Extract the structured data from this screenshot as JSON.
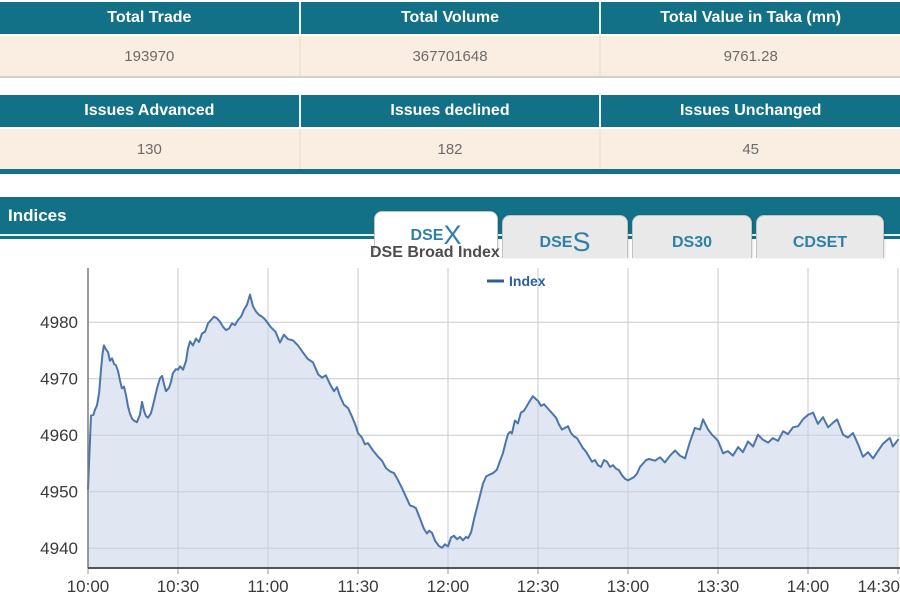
{
  "colors": {
    "teal": "#127186",
    "cream": "#faeee3",
    "value_text": "#6e6a66",
    "tab_text": "#2e80a8",
    "grid": "#c9c9c9",
    "axis": "#555555",
    "axis_y": "#7a7a7a",
    "tick_label": "#3a3a3a",
    "line": "#4a76ad",
    "fill": "rgba(199,211,232,0.55)",
    "legend_text": "#2a5f9e",
    "title_text": "#4d4d4d"
  },
  "tables": [
    {
      "headers": [
        "Total Trade",
        "Total Volume",
        "Total Value in Taka (mn)"
      ],
      "values": [
        "193970",
        "367701648",
        "9761.28"
      ]
    },
    {
      "headers": [
        "Issues Advanced",
        "Issues declined",
        "Issues Unchanged"
      ],
      "values": [
        "130",
        "182",
        "45"
      ]
    }
  ],
  "indices": {
    "title": "Indices"
  },
  "tabs": [
    {
      "text": "DSE",
      "big": "X",
      "active": true
    },
    {
      "text": "DSE",
      "big": "S",
      "active": false
    },
    {
      "text": "DS30",
      "big": "",
      "active": false
    },
    {
      "text": "CDSET",
      "big": "",
      "active": false
    }
  ],
  "chart_data": {
    "type": "area",
    "title": "DSE Broad Index",
    "legend": [
      "Index"
    ],
    "legend_position": "top-center",
    "grid": true,
    "x_ticks": [
      "10:00",
      "10:30",
      "11:00",
      "11:30",
      "12:00",
      "12:30",
      "13:00",
      "13:30",
      "14:00",
      "14:30"
    ],
    "x_tick_minutes": [
      0,
      30,
      60,
      90,
      120,
      150,
      180,
      210,
      240,
      270
    ],
    "x_range_minutes": [
      0,
      270
    ],
    "y_ticks": [
      4940,
      4950,
      4960,
      4970,
      4980
    ],
    "y_range": [
      4936.5,
      4989.6
    ],
    "points": [
      [
        0,
        4950.5
      ],
      [
        0.5,
        4957
      ],
      [
        1,
        4963.5
      ],
      [
        1.8,
        4963.6
      ],
      [
        2.3,
        4964.5
      ],
      [
        3,
        4965.3
      ],
      [
        3.7,
        4967.5
      ],
      [
        4.3,
        4971.4
      ],
      [
        4.8,
        4974.2
      ],
      [
        5.3,
        4975.9
      ],
      [
        6,
        4975.2
      ],
      [
        6.7,
        4974.7
      ],
      [
        7.3,
        4973.2
      ],
      [
        8,
        4973.6
      ],
      [
        8.7,
        4972.6
      ],
      [
        9.3,
        4972.4
      ],
      [
        10,
        4971.4
      ],
      [
        10.7,
        4969.6
      ],
      [
        11.3,
        4968.3
      ],
      [
        12,
        4968.6
      ],
      [
        12.7,
        4967
      ],
      [
        13.3,
        4965.2
      ],
      [
        14,
        4963.8
      ],
      [
        14.7,
        4962.9
      ],
      [
        15.3,
        4962.6
      ],
      [
        16.3,
        4962.3
      ],
      [
        17.3,
        4963.6
      ],
      [
        18,
        4965.9
      ],
      [
        18.7,
        4964.3
      ],
      [
        19.3,
        4963.4
      ],
      [
        20,
        4963.1
      ],
      [
        21,
        4963.9
      ],
      [
        22,
        4966
      ],
      [
        23,
        4968.3
      ],
      [
        24,
        4970.1
      ],
      [
        24.7,
        4970.5
      ],
      [
        25.3,
        4969.1
      ],
      [
        26,
        4967.8
      ],
      [
        27,
        4968.4
      ],
      [
        27.7,
        4969.5
      ],
      [
        28.3,
        4971
      ],
      [
        29.3,
        4971.7
      ],
      [
        30,
        4971.6
      ],
      [
        30.7,
        4972.2
      ],
      [
        31.7,
        4971.6
      ],
      [
        32.7,
        4973.2
      ],
      [
        33.3,
        4975.3
      ],
      [
        34,
        4976.6
      ],
      [
        35,
        4975.9
      ],
      [
        36,
        4977.1
      ],
      [
        37,
        4976.5
      ],
      [
        38,
        4978
      ],
      [
        39,
        4978.3
      ],
      [
        40,
        4979.8
      ],
      [
        41,
        4980.4
      ],
      [
        42,
        4981
      ],
      [
        43,
        4980.7
      ],
      [
        44,
        4980.1
      ],
      [
        45,
        4979.2
      ],
      [
        46,
        4978.6
      ],
      [
        47,
        4978.9
      ],
      [
        48,
        4979.8
      ],
      [
        49,
        4979.5
      ],
      [
        50,
        4980.4
      ],
      [
        51,
        4981
      ],
      [
        52,
        4982.2
      ],
      [
        53,
        4983.1
      ],
      [
        54,
        4984.9
      ],
      [
        55,
        4982.8
      ],
      [
        56,
        4981.9
      ],
      [
        57,
        4981.3
      ],
      [
        58,
        4981
      ],
      [
        59,
        4980.5
      ],
      [
        60,
        4979.8
      ],
      [
        61,
        4979.1
      ],
      [
        62.5,
        4978.3
      ],
      [
        64,
        4976.4
      ],
      [
        65.3,
        4977.8
      ],
      [
        66.7,
        4977
      ],
      [
        68.3,
        4976.8
      ],
      [
        70,
        4975.9
      ],
      [
        72,
        4974.4
      ],
      [
        73.3,
        4973.5
      ],
      [
        75,
        4972.9
      ],
      [
        76.7,
        4970.8
      ],
      [
        78,
        4970.2
      ],
      [
        79.3,
        4970.6
      ],
      [
        80.7,
        4969
      ],
      [
        82,
        4967.8
      ],
      [
        83,
        4968.5
      ],
      [
        84,
        4966.9
      ],
      [
        85.3,
        4965.4
      ],
      [
        86.7,
        4964.8
      ],
      [
        88,
        4963.3
      ],
      [
        89.3,
        4961.6
      ],
      [
        90,
        4960.4
      ],
      [
        91.3,
        4959.6
      ],
      [
        92.3,
        4958.4
      ],
      [
        93.3,
        4958.6
      ],
      [
        95,
        4957.3
      ],
      [
        96.7,
        4956.2
      ],
      [
        98,
        4955.5
      ],
      [
        99.3,
        4954.2
      ],
      [
        100.7,
        4953.6
      ],
      [
        102,
        4953.3
      ],
      [
        103.3,
        4952.1
      ],
      [
        104.7,
        4950.6
      ],
      [
        106,
        4949.1
      ],
      [
        107.3,
        4947.6
      ],
      [
        108.3,
        4947.4
      ],
      [
        109.3,
        4947.1
      ],
      [
        110.7,
        4945.2
      ],
      [
        112,
        4943.4
      ],
      [
        113,
        4942.6
      ],
      [
        113.7,
        4943.1
      ],
      [
        114.7,
        4942.7
      ],
      [
        115.7,
        4941.3
      ],
      [
        117,
        4940.4
      ],
      [
        118,
        4940.1
      ],
      [
        119,
        4940.7
      ],
      [
        120,
        4940.3
      ],
      [
        121,
        4941.9
      ],
      [
        122,
        4942.2
      ],
      [
        123,
        4941.6
      ],
      [
        124,
        4942
      ],
      [
        125,
        4941.4
      ],
      [
        126,
        4942
      ],
      [
        126.7,
        4941.8
      ],
      [
        127.7,
        4942.8
      ],
      [
        128.7,
        4945.2
      ],
      [
        129.7,
        4947.3
      ],
      [
        130.7,
        4949.4
      ],
      [
        131.7,
        4951.5
      ],
      [
        132.7,
        4952.7
      ],
      [
        133.7,
        4953
      ],
      [
        135,
        4953.3
      ],
      [
        136.3,
        4953.9
      ],
      [
        137.3,
        4955.4
      ],
      [
        138.3,
        4956.8
      ],
      [
        139.3,
        4958.9
      ],
      [
        140,
        4960.2
      ],
      [
        140.7,
        4960.6
      ],
      [
        141.3,
        4960.3
      ],
      [
        142.3,
        4962.6
      ],
      [
        143.3,
        4962.1
      ],
      [
        144.3,
        4964
      ],
      [
        145.3,
        4964.3
      ],
      [
        146.3,
        4965.2
      ],
      [
        147.3,
        4966.1
      ],
      [
        148.3,
        4966.9
      ],
      [
        149.3,
        4966.4
      ],
      [
        150,
        4966.1
      ],
      [
        151,
        4965.2
      ],
      [
        152,
        4965.5
      ],
      [
        153,
        4964.9
      ],
      [
        154,
        4964.3
      ],
      [
        155,
        4963.7
      ],
      [
        156,
        4963.1
      ],
      [
        157,
        4961.9
      ],
      [
        158,
        4961
      ],
      [
        159,
        4961.3
      ],
      [
        160,
        4961.6
      ],
      [
        161,
        4960.4
      ],
      [
        162,
        4959.8
      ],
      [
        163,
        4959.5
      ],
      [
        164,
        4958.6
      ],
      [
        165,
        4957.7
      ],
      [
        166,
        4957.1
      ],
      [
        167,
        4956.2
      ],
      [
        168,
        4955.3
      ],
      [
        169,
        4955.6
      ],
      [
        170,
        4954.7
      ],
      [
        171,
        4954.4
      ],
      [
        172,
        4955.6
      ],
      [
        173,
        4955.3
      ],
      [
        174,
        4954.4
      ],
      [
        175,
        4954.7
      ],
      [
        176,
        4954.1
      ],
      [
        177,
        4953.8
      ],
      [
        178,
        4952.9
      ],
      [
        179,
        4952.3
      ],
      [
        180,
        4952
      ],
      [
        181,
        4952.3
      ],
      [
        182,
        4952.6
      ],
      [
        183,
        4953.2
      ],
      [
        184,
        4954.4
      ],
      [
        185,
        4955
      ],
      [
        186,
        4955.6
      ],
      [
        187,
        4955.8
      ],
      [
        189,
        4955.5
      ],
      [
        190.7,
        4956.1
      ],
      [
        192.3,
        4955.2
      ],
      [
        194,
        4956.4
      ],
      [
        195.7,
        4957.3
      ],
      [
        197.3,
        4956.4
      ],
      [
        199,
        4955.9
      ],
      [
        200.7,
        4958.9
      ],
      [
        202.3,
        4961.3
      ],
      [
        204,
        4961
      ],
      [
        205,
        4962.8
      ],
      [
        206.7,
        4961
      ],
      [
        208,
        4960.1
      ],
      [
        209,
        4959.6
      ],
      [
        210,
        4959
      ],
      [
        211.7,
        4956.8
      ],
      [
        213.3,
        4957.2
      ],
      [
        215,
        4956.4
      ],
      [
        216.7,
        4957.9
      ],
      [
        218.3,
        4957
      ],
      [
        220,
        4958.9
      ],
      [
        221.7,
        4958
      ],
      [
        223.3,
        4960.1
      ],
      [
        225,
        4959.2
      ],
      [
        226.7,
        4958.7
      ],
      [
        228.3,
        4959.5
      ],
      [
        230,
        4959
      ],
      [
        231.7,
        4960.7
      ],
      [
        233.3,
        4960.2
      ],
      [
        235,
        4961.4
      ],
      [
        236.7,
        4961.6
      ],
      [
        238.3,
        4962.8
      ],
      [
        240,
        4963.6
      ],
      [
        241.7,
        4964
      ],
      [
        243.3,
        4962
      ],
      [
        245,
        4963.2
      ],
      [
        246.7,
        4961.4
      ],
      [
        248.3,
        4962.2
      ],
      [
        249.7,
        4962.8
      ],
      [
        251.7,
        4960.1
      ],
      [
        253.3,
        4959.6
      ],
      [
        255,
        4960.4
      ],
      [
        256.7,
        4958.4
      ],
      [
        258.3,
        4956.2
      ],
      [
        260,
        4957
      ],
      [
        261.7,
        4955.9
      ],
      [
        263.3,
        4957.2
      ],
      [
        265,
        4958.5
      ],
      [
        266.7,
        4959.3
      ],
      [
        267.3,
        4959.5
      ],
      [
        268.3,
        4958
      ],
      [
        270,
        4959.2
      ]
    ]
  }
}
